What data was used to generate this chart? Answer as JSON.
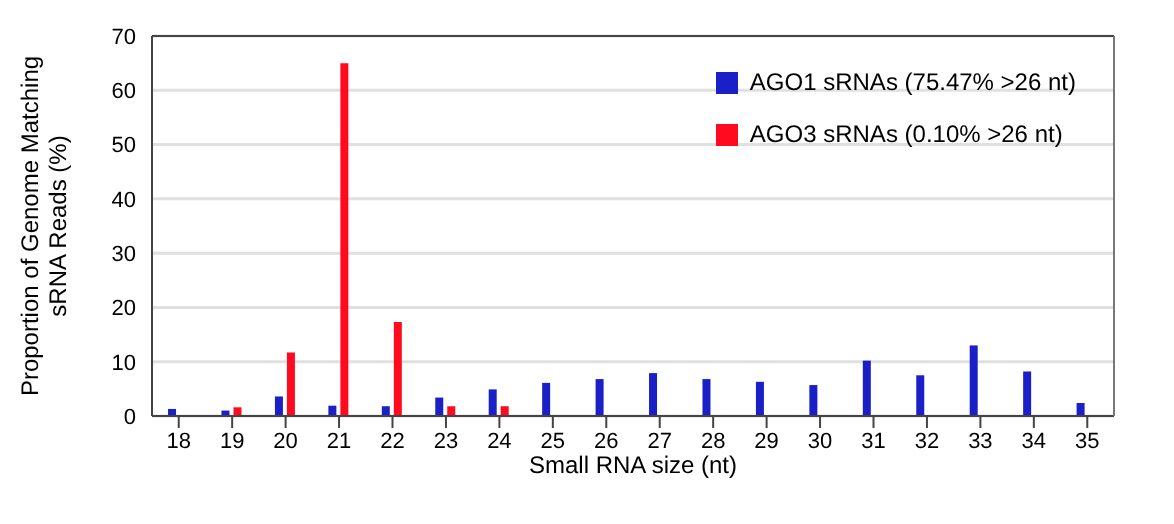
{
  "chart_data": {
    "type": "bar",
    "xlabel": "Small RNA size (nt)",
    "ylabel": "Proportion of Genome Matching\nsRNA Reads (%)",
    "categories": [
      "18",
      "19",
      "20",
      "21",
      "22",
      "23",
      "24",
      "25",
      "26",
      "27",
      "28",
      "29",
      "30",
      "31",
      "32",
      "33",
      "34",
      "35"
    ],
    "series": [
      {
        "name": "AGO1 sRNAs (75.47% >26 nt)",
        "color": "#1a1fc8",
        "values": [
          1.3,
          1.0,
          3.6,
          1.9,
          1.8,
          3.4,
          4.9,
          6.1,
          6.8,
          7.9,
          6.8,
          6.3,
          5.7,
          10.2,
          7.5,
          13.0,
          8.2,
          2.4
        ]
      },
      {
        "name": "AGO3 sRNAs (0.10% >26 nt)",
        "color": "#ff0a1e",
        "values": [
          0,
          1.6,
          11.7,
          65,
          17.3,
          1.8,
          1.8,
          0,
          0,
          0,
          0,
          0,
          0,
          0,
          0,
          0,
          0,
          0
        ]
      }
    ],
    "ylim": [
      0,
      70
    ],
    "yticks": [
      0,
      10,
      20,
      30,
      40,
      50,
      60,
      70
    ],
    "grid": "y",
    "legend": "top right"
  }
}
